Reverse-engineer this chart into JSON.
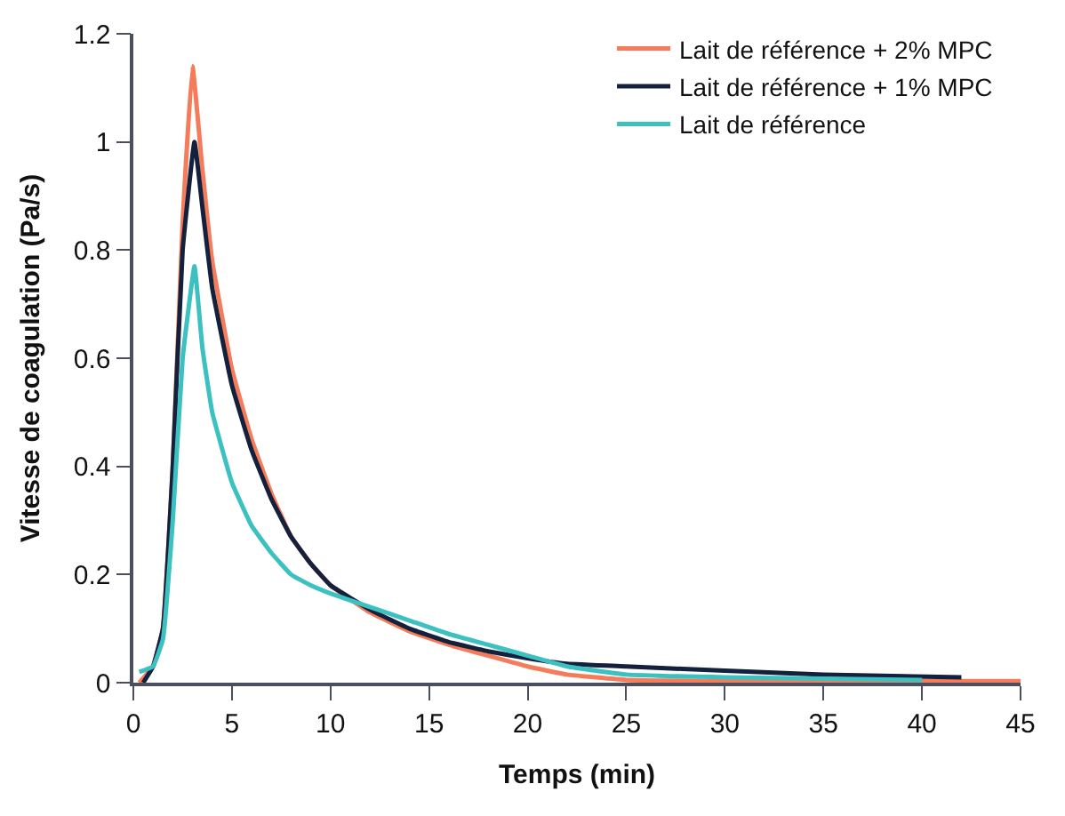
{
  "chart_data": {
    "type": "line",
    "xlabel": "Temps (min)",
    "ylabel": "Vitesse de coagulation (Pa/s)",
    "xlim": [
      0,
      45
    ],
    "xticks": [
      0,
      5,
      10,
      15,
      20,
      25,
      30,
      35,
      40,
      45
    ],
    "ylim": [
      0,
      1.2
    ],
    "yticks": [
      0,
      0.2,
      0.4,
      0.6,
      0.8,
      1,
      1.2
    ],
    "legend": "top right",
    "marker": "none",
    "line_style": "solid",
    "series": [
      {
        "name": "Lait de référence + 2% MPC",
        "color": "#f47c5a",
        "x": [
          0.3,
          1,
          1.5,
          2,
          2.5,
          3,
          3.5,
          4,
          5,
          6,
          7,
          8,
          9,
          10,
          12,
          14,
          16,
          18,
          20,
          22,
          25,
          30,
          45
        ],
        "values": [
          0,
          0.03,
          0.1,
          0.4,
          0.85,
          1.14,
          0.95,
          0.78,
          0.58,
          0.45,
          0.35,
          0.27,
          0.22,
          0.18,
          0.13,
          0.095,
          0.07,
          0.05,
          0.03,
          0.015,
          0.005,
          0.003,
          0.003
        ]
      },
      {
        "name": "Lait de référence + 1% MPC",
        "color": "#14213d",
        "x": [
          0.5,
          1,
          1.5,
          2,
          2.5,
          3.1,
          3.5,
          4,
          5,
          6,
          7,
          8,
          9,
          10,
          12,
          14,
          16,
          18,
          20,
          22,
          25,
          30,
          35,
          42
        ],
        "values": [
          0,
          0.03,
          0.1,
          0.4,
          0.8,
          1.0,
          0.88,
          0.73,
          0.55,
          0.43,
          0.34,
          0.27,
          0.22,
          0.18,
          0.135,
          0.1,
          0.075,
          0.058,
          0.045,
          0.035,
          0.03,
          0.022,
          0.015,
          0.01
        ]
      },
      {
        "name": "Lait de référence",
        "color": "#3cc1c0",
        "x": [
          0.3,
          1,
          1.5,
          2,
          2.5,
          3.1,
          3.5,
          4,
          5,
          6,
          7,
          8,
          9,
          10,
          12,
          14,
          16,
          18,
          20,
          22,
          25,
          30,
          40
        ],
        "values": [
          0.02,
          0.03,
          0.08,
          0.3,
          0.6,
          0.77,
          0.62,
          0.5,
          0.37,
          0.29,
          0.24,
          0.2,
          0.18,
          0.165,
          0.14,
          0.115,
          0.09,
          0.07,
          0.05,
          0.03,
          0.015,
          0.01,
          0.005
        ]
      }
    ]
  }
}
